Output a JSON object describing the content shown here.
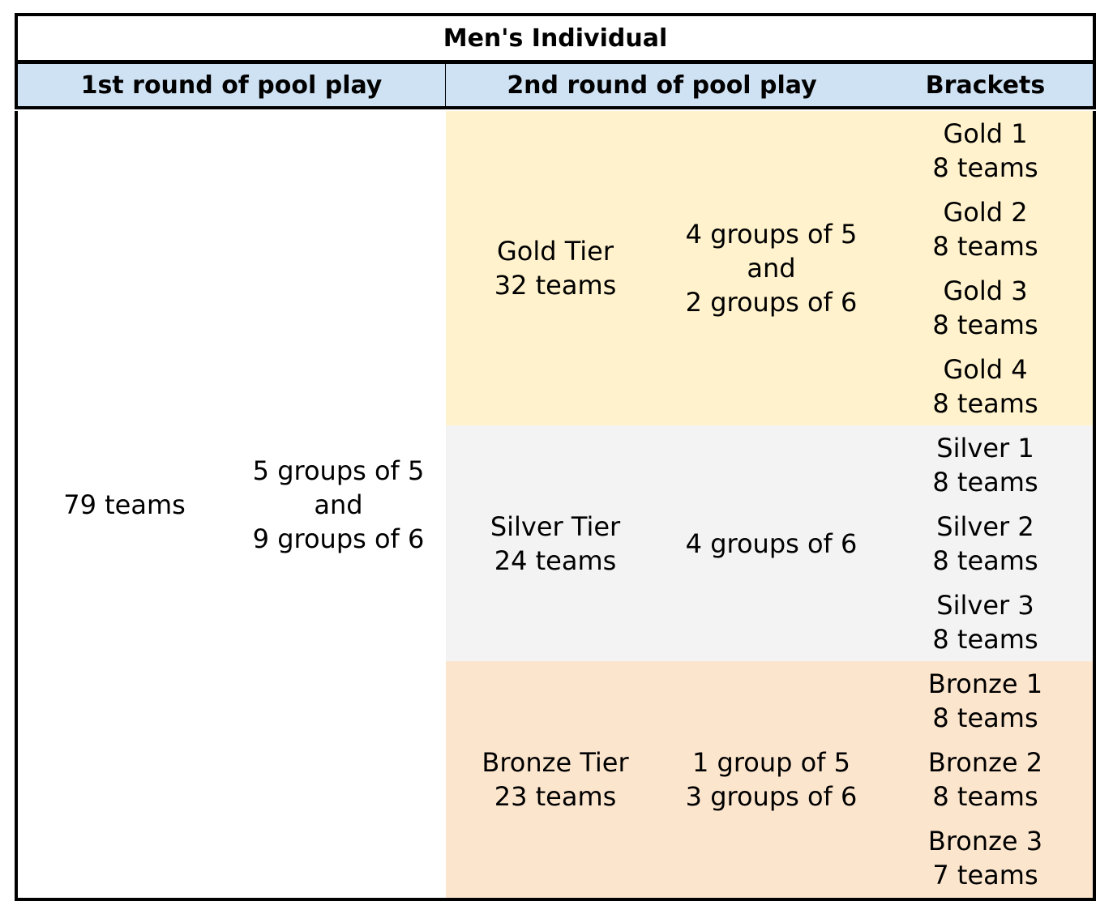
{
  "title": "Men's Individual",
  "headers": {
    "round1": "1st round of pool play",
    "round2": "2nd round of pool play",
    "brackets": "Brackets"
  },
  "round1": {
    "teams": "79 teams",
    "groups": "5 groups of 5\nand\n9 groups of 6"
  },
  "tiers": [
    {
      "label": "Gold Tier\n32 teams",
      "groups": "4 groups of 5\nand\n2 groups of 6",
      "color": "#fff2cc"
    },
    {
      "label": "Silver Tier\n24 teams",
      "groups": "4 groups of 6",
      "color": "#f3f3f3"
    },
    {
      "label": "Bronze Tier\n23 teams",
      "groups": "1 group of 5\n3 groups of 6",
      "color": "#fce5cd"
    }
  ],
  "brackets": [
    {
      "label": "Gold 1\n8 teams"
    },
    {
      "label": "Gold 2\n8 teams"
    },
    {
      "label": "Gold 3\n8 teams"
    },
    {
      "label": "Gold 4\n8 teams"
    },
    {
      "label": "Silver 1\n8 teams"
    },
    {
      "label": "Silver 2\n8 teams"
    },
    {
      "label": "Silver 3\n8 teams"
    },
    {
      "label": "Bronze 1\n8 teams"
    },
    {
      "label": "Bronze 2\n8 teams"
    },
    {
      "label": "Bronze 3\n7 teams"
    }
  ],
  "header_color": "#cfe2f3"
}
